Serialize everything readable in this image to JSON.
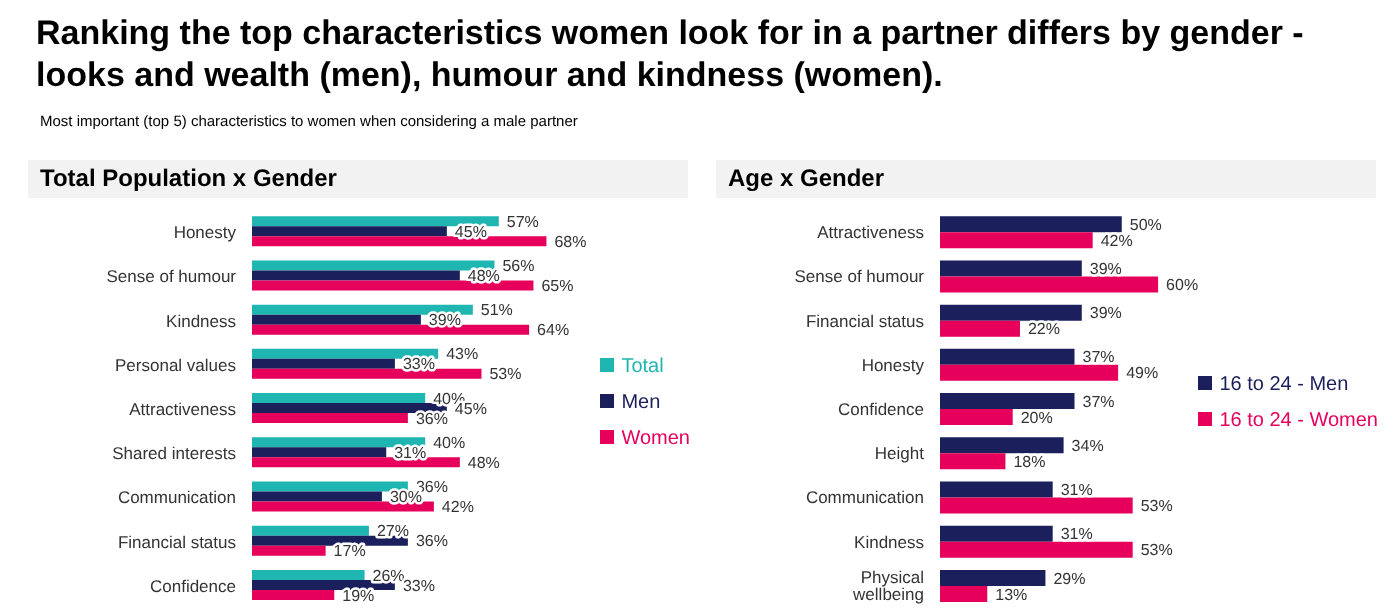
{
  "chart_data": [
    {
      "type": "bar",
      "orientation": "horizontal",
      "title": "Total Population x Gender",
      "annotations": [
        "Ranking the top characteristics women look for in a partner differs by gender - looks and wealth (men), humour and kindness (women).",
        "Most important (top 5) characteristics to women when considering a male partner"
      ],
      "categories": [
        "Honesty",
        "Sense of humour",
        "Kindness",
        "Personal values",
        "Attractiveness",
        "Shared interests",
        "Communication",
        "Financial status",
        "Confidence"
      ],
      "series": [
        {
          "name": "Total",
          "color": "#1fb5b0",
          "values": [
            57,
            56,
            51,
            43,
            40,
            40,
            36,
            27,
            26
          ],
          "value_labels": [
            "57%",
            "56%",
            "51%",
            "43%",
            "40%",
            "40%",
            "36%",
            "27%",
            "26%"
          ]
        },
        {
          "name": "Men",
          "color": "#1b1f5c",
          "values": [
            45,
            48,
            39,
            33,
            45,
            31,
            30,
            36,
            33
          ],
          "value_labels": [
            "45%",
            "48%",
            "39%",
            "33%",
            "45%",
            "31%",
            "30%",
            "36%",
            "33%"
          ]
        },
        {
          "name": "Women",
          "color": "#e6005c",
          "values": [
            68,
            65,
            64,
            53,
            36,
            48,
            42,
            17,
            19
          ],
          "value_labels": [
            "68%",
            "65%",
            "64%",
            "53%",
            "36%",
            "48%",
            "42%",
            "17%",
            "19%"
          ]
        }
      ],
      "legend": "right",
      "grid": false
    },
    {
      "type": "bar",
      "orientation": "horizontal",
      "title": "Age x Gender",
      "categories": [
        "Attractiveness",
        "Sense of humour",
        "Financial status",
        "Honesty",
        "Confidence",
        "Height",
        "Communication",
        "Kindness",
        "Physical wellbeing"
      ],
      "series": [
        {
          "name": "16 to 24 - Men",
          "color": "#1b1f5c",
          "values": [
            50,
            39,
            39,
            37,
            37,
            34,
            31,
            31,
            29
          ],
          "value_labels": [
            "50%",
            "39%",
            "39%",
            "37%",
            "37%",
            "34%",
            "31%",
            "31%",
            "29%"
          ]
        },
        {
          "name": "16 to 24 - Women",
          "color": "#e6005c",
          "values": [
            42,
            60,
            22,
            49,
            20,
            18,
            53,
            53,
            13
          ],
          "value_labels": [
            "42%",
            "60%",
            "22%",
            "49%",
            "20%",
            "18%",
            "53%",
            "53%",
            "13%"
          ]
        }
      ],
      "legend": "right",
      "grid": false
    }
  ]
}
